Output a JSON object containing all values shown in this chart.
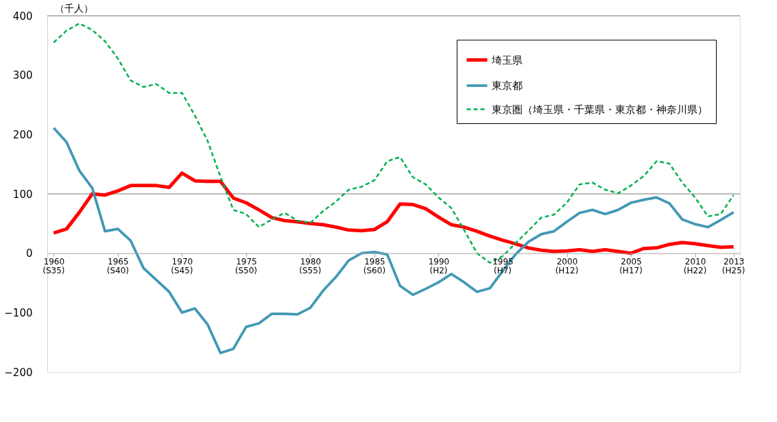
{
  "chart_data": {
    "type": "line",
    "ylabel": "（千人）",
    "x": [
      1960,
      1961,
      1962,
      1963,
      1964,
      1965,
      1966,
      1967,
      1968,
      1969,
      1970,
      1971,
      1972,
      1973,
      1974,
      1975,
      1976,
      1977,
      1978,
      1979,
      1980,
      1981,
      1982,
      1983,
      1984,
      1985,
      1986,
      1987,
      1988,
      1989,
      1990,
      1991,
      1992,
      1993,
      1994,
      1995,
      1996,
      1997,
      1998,
      1999,
      2000,
      2001,
      2002,
      2003,
      2004,
      2005,
      2006,
      2007,
      2008,
      2009,
      2010,
      2011,
      2012,
      2013
    ],
    "xlim": [
      1959.5,
      2013.5
    ],
    "xticks": [
      1960,
      1965,
      1970,
      1975,
      1980,
      1985,
      1990,
      1995,
      2000,
      2005,
      2010,
      2013
    ],
    "annotations": [
      "(S35)",
      "(S40)",
      "(S45)",
      "(S50)",
      "(S55)",
      "(S60)",
      "(H2)",
      "(H7)",
      "(H12)",
      "(H17)",
      "(H22)",
      "(H25)"
    ],
    "ylim": [
      -200,
      400
    ],
    "yticks": [
      -200,
      -100,
      0,
      100,
      200,
      300,
      400
    ],
    "grid": false,
    "legend": "top right",
    "ref_lines": [
      {
        "axis": "y",
        "value": 100,
        "color": "#a6a6a6"
      }
    ],
    "series": [
      {
        "name": "埼玉県",
        "color": "#ff0000",
        "line_style": "solid",
        "values": [
          34,
          41,
          69,
          100,
          98,
          105,
          114,
          114,
          114,
          111,
          135,
          122,
          121,
          121,
          93,
          85,
          73,
          60,
          55,
          53,
          50,
          48,
          44,
          39,
          38,
          40,
          53,
          83,
          82,
          75,
          61,
          48,
          44,
          37,
          29,
          22,
          16,
          9,
          5,
          3,
          4,
          6,
          3,
          6,
          3,
          0,
          8,
          9,
          15,
          18,
          16,
          13,
          10,
          11
        ]
      },
      {
        "name": "東京都",
        "color": "#4198b5",
        "line_style": "solid",
        "values": [
          211,
          187,
          139,
          110,
          37,
          41,
          21,
          -25,
          -45,
          -65,
          -100,
          -93,
          -120,
          -168,
          -161,
          -124,
          -118,
          -102,
          -102,
          -103,
          -92,
          -63,
          -40,
          -12,
          0,
          2,
          -2,
          -55,
          -70,
          -60,
          -49,
          -35,
          -49,
          -65,
          -59,
          -30,
          -2,
          19,
          32,
          37,
          53,
          68,
          73,
          66,
          73,
          85,
          90,
          94,
          84,
          57,
          49,
          44,
          56,
          69
        ]
      },
      {
        "name": "東京圏（埼玉県・千葉県・東京都・神奈川県）",
        "color": "#00b050",
        "line_style": "dashed",
        "values": [
          355,
          375,
          387,
          376,
          357,
          328,
          291,
          280,
          285,
          270,
          270,
          232,
          189,
          129,
          73,
          66,
          44,
          57,
          68,
          55,
          51,
          71,
          87,
          107,
          112,
          123,
          155,
          162,
          128,
          116,
          94,
          76,
          39,
          0,
          -16,
          -5,
          17,
          38,
          60,
          65,
          85,
          116,
          119,
          107,
          101,
          114,
          130,
          155,
          151,
          119,
          94,
          62,
          66,
          98
        ]
      }
    ]
  }
}
